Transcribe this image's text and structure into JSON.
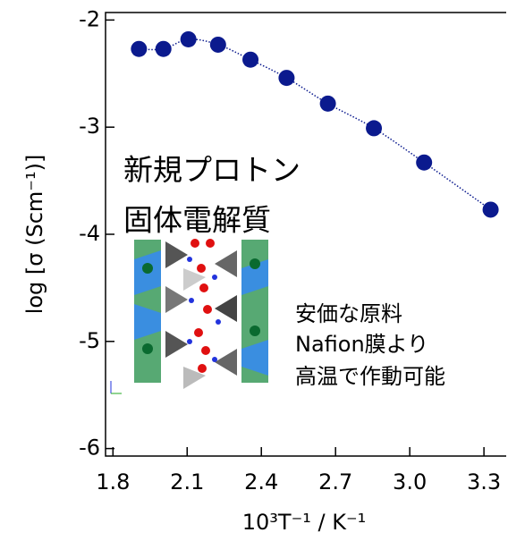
{
  "chart_data": {
    "type": "scatter",
    "x_label": "10³T⁻¹ / K⁻¹",
    "y_label": "log [σ (Scm⁻¹)]",
    "annotations": [
      "新規プロトン",
      "固体電解質",
      "安価な原料",
      "Nafion膜より",
      "高温で作動可能"
    ],
    "series": [
      {
        "color": "#0b1a8e",
        "x": [
          1.905,
          2.004,
          2.105,
          2.225,
          2.356,
          2.502,
          2.669,
          2.855,
          3.058,
          3.327
        ],
        "values": [
          -2.27,
          -2.27,
          -2.18,
          -2.23,
          -2.37,
          -2.54,
          -2.78,
          -3.01,
          -3.33,
          -3.77
        ]
      }
    ],
    "fit_line": true,
    "xlim": [
      1.77,
      3.39
    ],
    "ylim": [
      -6.07,
      -1.93
    ],
    "xticks": [
      1.8,
      2.1,
      2.4,
      2.7,
      {
        "value": 3,
        "label": "3.0"
      },
      3.3
    ],
    "yticks": [
      -2,
      -3,
      -4,
      -5,
      -6
    ]
  }
}
